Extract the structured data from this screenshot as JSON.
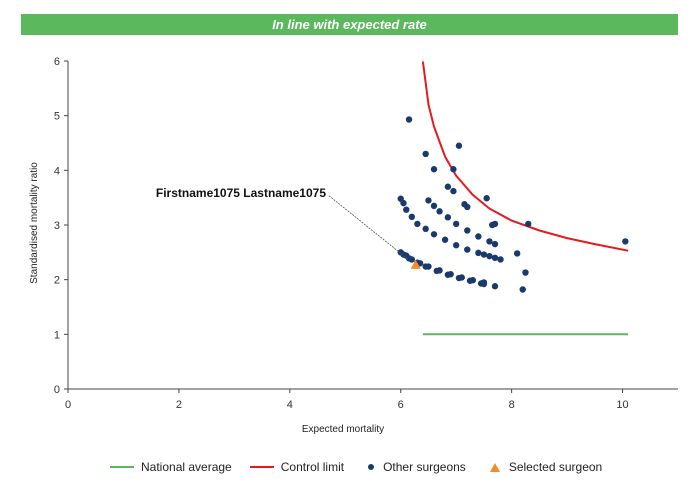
{
  "banner": {
    "text": "In line with expected rate",
    "color": "#5cb85c"
  },
  "chart_data": {
    "type": "scatter",
    "title": "",
    "xlabel": "Expected mortality",
    "ylabel": "Standardised mortality ratio",
    "xlim": [
      0,
      11
    ],
    "ylim": [
      0,
      6
    ],
    "xticks": [
      0,
      2,
      4,
      6,
      8,
      10
    ],
    "yticks": [
      0,
      1,
      2,
      3,
      4,
      5,
      6
    ],
    "grid": false,
    "legend_position": "bottom",
    "colors": {
      "national_average": "#5cb85c",
      "control_limit": "#e8191c",
      "other_surgeons": "#1a3a6e",
      "selected_surgeon": "#f28c28"
    },
    "series": [
      {
        "name": "National average",
        "kind": "line",
        "x": [
          6.4,
          10.1
        ],
        "y": [
          1.0,
          1.0
        ]
      },
      {
        "name": "Control limit",
        "kind": "line",
        "x": [
          6.4,
          6.5,
          6.6,
          6.8,
          7.0,
          7.3,
          7.6,
          8.0,
          8.5,
          9.0,
          9.5,
          10.1
        ],
        "y": [
          5.99,
          5.2,
          4.8,
          4.25,
          3.9,
          3.55,
          3.3,
          3.08,
          2.9,
          2.76,
          2.65,
          2.53
        ]
      },
      {
        "name": "Other surgeons",
        "kind": "scatter",
        "x": [
          6.15,
          6.45,
          7.05,
          6.6,
          6.95,
          6.85,
          6.95,
          7.15,
          7.2,
          7.55,
          7.7,
          7.65,
          8.3,
          10.05,
          8.1,
          8.25,
          7.7,
          8.2,
          6.0,
          6.05,
          6.1,
          6.2,
          6.3,
          6.45,
          6.6,
          6.8,
          7.0,
          7.2,
          7.4,
          7.5,
          7.6,
          7.7,
          7.8,
          6.5,
          6.6,
          6.7,
          6.85,
          7.0,
          7.2,
          7.4,
          7.6,
          7.7,
          6.0,
          6.1,
          6.2,
          6.35,
          6.5,
          6.7,
          6.9,
          7.1,
          7.3,
          7.5,
          6.05,
          6.15,
          6.3,
          6.45,
          6.65,
          6.85,
          7.05,
          7.25,
          7.45,
          7.5
        ],
        "y": [
          4.93,
          4.3,
          4.45,
          4.02,
          4.02,
          3.7,
          3.62,
          3.38,
          3.33,
          3.49,
          3.02,
          3.0,
          3.02,
          2.7,
          2.48,
          2.13,
          1.88,
          1.82,
          3.48,
          3.4,
          3.28,
          3.15,
          3.02,
          2.93,
          2.83,
          2.73,
          2.63,
          2.55,
          2.49,
          2.46,
          2.43,
          2.4,
          2.37,
          3.45,
          3.35,
          3.25,
          3.14,
          3.02,
          2.9,
          2.79,
          2.7,
          2.65,
          2.5,
          2.44,
          2.37,
          2.3,
          2.24,
          2.17,
          2.1,
          2.04,
          1.99,
          1.95,
          2.46,
          2.39,
          2.31,
          2.24,
          2.16,
          2.09,
          2.03,
          1.98,
          1.93,
          1.92
        ]
      },
      {
        "name": "Selected surgeon",
        "kind": "scatter",
        "x": [
          6.27
        ],
        "y": [
          2.27
        ]
      }
    ],
    "annotations": [
      {
        "text": "Firstname1075 Lastname1075",
        "x": 6.27,
        "y": 2.27
      }
    ]
  }
}
